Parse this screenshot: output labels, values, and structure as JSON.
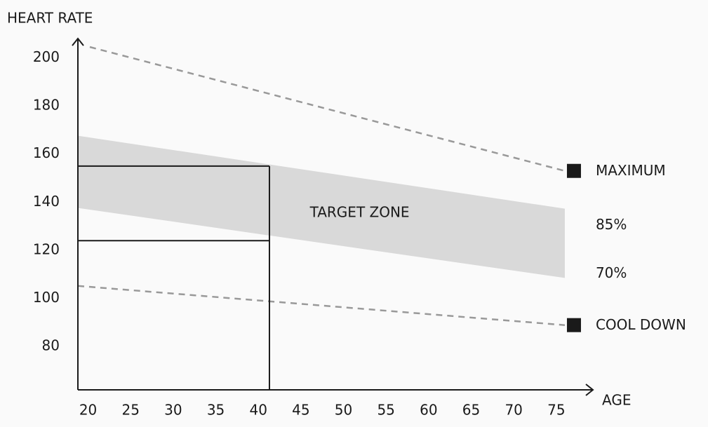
{
  "chart_data": {
    "type": "line",
    "y_label": "HEART RATE",
    "x_label": "AGE",
    "xlim": [
      18.8,
      79.3
    ],
    "xticks": [
      20,
      25,
      30,
      35,
      40,
      45,
      50,
      55,
      60,
      65,
      70,
      75
    ],
    "ylim": [
      62,
      208
    ],
    "yticks": [
      80,
      100,
      120,
      140,
      160,
      180,
      200
    ],
    "series": [
      {
        "name": "MAXIMUM",
        "color": "#999999",
        "x": [
          20.2,
          76
        ],
        "values": [
          204.5,
          153
        ]
      },
      {
        "name": "COOL DOWN",
        "color": "#999999",
        "x": [
          18.8,
          76
        ],
        "values": [
          105.2,
          88.9
        ]
      }
    ],
    "band": {
      "name": "TARGET ZONE",
      "color": "#d9d9d9",
      "x": [
        18.8,
        76
      ],
      "upper": [
        167.6,
        137.3
      ],
      "lower": [
        137.6,
        108.5
      ],
      "upper_label": "85%",
      "lower_label": "70%"
    },
    "guides": {
      "x": 41.3,
      "y": [
        155,
        124
      ]
    },
    "marker_color": "#1a1a1a"
  }
}
